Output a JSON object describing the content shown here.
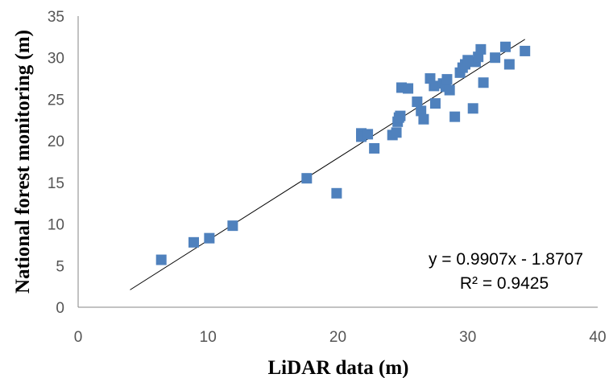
{
  "chart_data": {
    "type": "scatter",
    "title": "",
    "xlabel": "LiDAR data (m)",
    "ylabel": "National forest monitoring (m)",
    "xlim": [
      0,
      40
    ],
    "ylim": [
      0,
      35
    ],
    "x_ticks": [
      "0",
      "10",
      "20",
      "30",
      "40"
    ],
    "y_ticks": [
      "0",
      "5",
      "10",
      "15",
      "20",
      "25",
      "30",
      "35"
    ],
    "grid": false,
    "legend": "none",
    "marker_color": "#4F81BD",
    "series": [
      {
        "points": [
          [
            6.4,
            5.7
          ],
          [
            8.9,
            7.8
          ],
          [
            10.1,
            8.3
          ],
          [
            11.9,
            9.8
          ],
          [
            17.6,
            15.5
          ],
          [
            19.9,
            13.7
          ],
          [
            21.8,
            20.9
          ],
          [
            21.8,
            20.5
          ],
          [
            22.3,
            20.8
          ],
          [
            22.8,
            19.1
          ],
          [
            24.2,
            20.7
          ],
          [
            24.5,
            21.0
          ],
          [
            24.6,
            22.3
          ],
          [
            24.7,
            22.8
          ],
          [
            24.8,
            23.0
          ],
          [
            24.9,
            26.4
          ],
          [
            25.4,
            26.3
          ],
          [
            26.1,
            24.7
          ],
          [
            26.4,
            23.6
          ],
          [
            26.6,
            22.6
          ],
          [
            27.1,
            27.5
          ],
          [
            27.4,
            26.6
          ],
          [
            27.5,
            24.5
          ],
          [
            28.1,
            26.9
          ],
          [
            28.3,
            26.5
          ],
          [
            28.4,
            27.4
          ],
          [
            28.6,
            26.1
          ],
          [
            29.0,
            22.9
          ],
          [
            29.4,
            28.2
          ],
          [
            29.6,
            28.8
          ],
          [
            29.8,
            29.2
          ],
          [
            30.0,
            29.7
          ],
          [
            30.4,
            23.9
          ],
          [
            30.6,
            29.5
          ],
          [
            30.8,
            30.1
          ],
          [
            31.0,
            31.0
          ],
          [
            31.2,
            27.0
          ],
          [
            32.1,
            30.0
          ],
          [
            32.9,
            31.3
          ],
          [
            33.2,
            29.2
          ],
          [
            34.4,
            30.8
          ]
        ]
      }
    ],
    "trendline": {
      "slope": 0.9907,
      "intercept": -1.8707,
      "x_range": [
        4.0,
        34.4
      ],
      "equation_label": "y = 0.9907x - 1.8707",
      "r2_label": "R² = 0.9425"
    }
  }
}
